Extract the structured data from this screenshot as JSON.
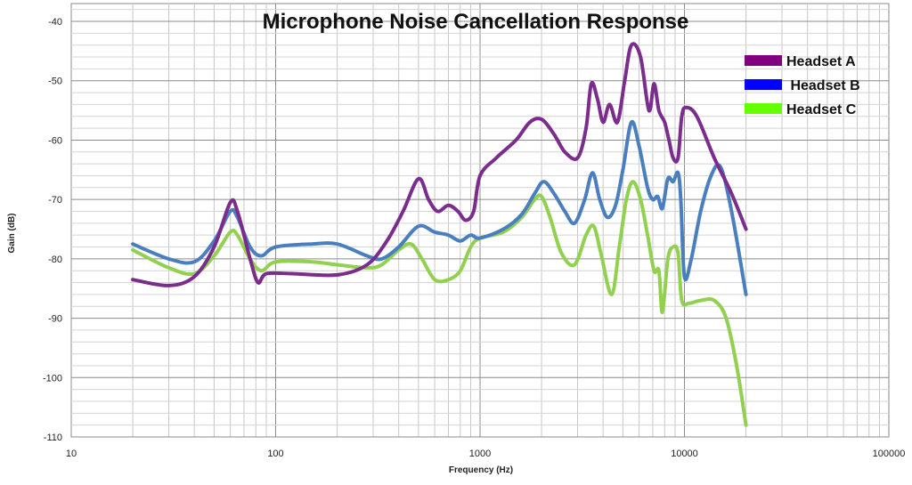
{
  "chart_data": {
    "type": "line",
    "title": "Microphone Noise Cancellation  Response",
    "xlabel": "Frequency (Hz)",
    "ylabel": "Gain (dB)",
    "x_scale": "log",
    "xlim": [
      10,
      100000
    ],
    "ylim": [
      -110,
      -37
    ],
    "x_ticks": [
      10,
      100,
      1000,
      10000,
      100000
    ],
    "x_tick_labels": [
      "10",
      "100",
      "1000",
      "10000",
      "100000"
    ],
    "y_ticks": [
      -110,
      -100,
      -90,
      -80,
      -70,
      -60,
      -50,
      -40
    ],
    "y_tick_labels": [
      "-110",
      "-100",
      "-90",
      "-80",
      "-70",
      "-60",
      "-50",
      "-40"
    ],
    "grid": true,
    "legend_position": "top-right",
    "series": [
      {
        "name": "Headset A",
        "legend_label": "Headset A",
        "color": "#7B2D8E",
        "swatch_color": "#800080",
        "points": [
          [
            20,
            -83.5
          ],
          [
            30,
            -84.5
          ],
          [
            40,
            -83
          ],
          [
            50,
            -78
          ],
          [
            60,
            -70.5
          ],
          [
            65,
            -72
          ],
          [
            75,
            -80
          ],
          [
            82,
            -84
          ],
          [
            90,
            -82.5
          ],
          [
            120,
            -82.5
          ],
          [
            200,
            -82.7
          ],
          [
            280,
            -81
          ],
          [
            350,
            -77
          ],
          [
            420,
            -72
          ],
          [
            500,
            -66.5
          ],
          [
            560,
            -70
          ],
          [
            620,
            -72
          ],
          [
            700,
            -71
          ],
          [
            780,
            -72
          ],
          [
            850,
            -73.5
          ],
          [
            930,
            -72
          ],
          [
            1000,
            -66
          ],
          [
            1200,
            -63
          ],
          [
            1500,
            -60
          ],
          [
            1750,
            -57
          ],
          [
            2000,
            -56.5
          ],
          [
            2300,
            -59
          ],
          [
            2600,
            -62
          ],
          [
            3000,
            -63
          ],
          [
            3300,
            -58
          ],
          [
            3500,
            -50.5
          ],
          [
            3750,
            -53
          ],
          [
            4000,
            -57
          ],
          [
            4300,
            -54
          ],
          [
            4700,
            -57
          ],
          [
            5100,
            -50
          ],
          [
            5500,
            -44
          ],
          [
            6100,
            -46
          ],
          [
            6700,
            -55
          ],
          [
            7100,
            -50.5
          ],
          [
            7500,
            -55
          ],
          [
            8000,
            -57
          ],
          [
            8400,
            -60
          ],
          [
            8800,
            -63
          ],
          [
            9300,
            -63
          ],
          [
            9700,
            -56
          ],
          [
            10200,
            -54.5
          ],
          [
            11500,
            -56
          ],
          [
            14000,
            -63
          ],
          [
            17000,
            -69
          ],
          [
            20000,
            -75
          ]
        ]
      },
      {
        "name": "Headset B",
        "legend_label": " Headset B",
        "color": "#4A7FBF",
        "swatch_color": "#0000FF",
        "points": [
          [
            20,
            -77.5
          ],
          [
            30,
            -80
          ],
          [
            40,
            -80.5
          ],
          [
            50,
            -77
          ],
          [
            60,
            -72
          ],
          [
            65,
            -73
          ],
          [
            75,
            -78
          ],
          [
            85,
            -79.5
          ],
          [
            100,
            -78
          ],
          [
            150,
            -77.5
          ],
          [
            200,
            -77.5
          ],
          [
            280,
            -79.5
          ],
          [
            330,
            -80
          ],
          [
            400,
            -78
          ],
          [
            500,
            -74.5
          ],
          [
            600,
            -75.5
          ],
          [
            700,
            -76
          ],
          [
            800,
            -77
          ],
          [
            900,
            -76
          ],
          [
            1000,
            -76.5
          ],
          [
            1300,
            -75
          ],
          [
            1600,
            -72.5
          ],
          [
            1850,
            -69
          ],
          [
            2050,
            -67
          ],
          [
            2300,
            -69
          ],
          [
            2600,
            -72
          ],
          [
            2900,
            -74
          ],
          [
            3250,
            -70
          ],
          [
            3550,
            -65.5
          ],
          [
            3850,
            -70
          ],
          [
            4200,
            -73
          ],
          [
            4600,
            -71
          ],
          [
            5000,
            -65
          ],
          [
            5500,
            -57
          ],
          [
            6000,
            -61
          ],
          [
            6600,
            -68
          ],
          [
            7000,
            -70
          ],
          [
            7400,
            -69.5
          ],
          [
            7800,
            -71.5
          ],
          [
            8300,
            -66.5
          ],
          [
            8800,
            -67
          ],
          [
            9300,
            -65.5
          ],
          [
            9600,
            -70
          ],
          [
            10000,
            -83
          ],
          [
            10800,
            -80
          ],
          [
            12000,
            -72
          ],
          [
            13500,
            -66
          ],
          [
            15000,
            -64.5
          ],
          [
            17000,
            -72
          ],
          [
            20000,
            -86
          ]
        ]
      },
      {
        "name": "Headset C",
        "legend_label": "Headset C",
        "color": "#92D050",
        "swatch_color": "#66FF00",
        "points": [
          [
            20,
            -78.5
          ],
          [
            30,
            -81.5
          ],
          [
            40,
            -82.5
          ],
          [
            50,
            -79.5
          ],
          [
            60,
            -75.5
          ],
          [
            65,
            -76
          ],
          [
            75,
            -80
          ],
          [
            85,
            -82
          ],
          [
            100,
            -80.5
          ],
          [
            150,
            -80.5
          ],
          [
            200,
            -81
          ],
          [
            280,
            -81.5
          ],
          [
            330,
            -81
          ],
          [
            400,
            -78.5
          ],
          [
            460,
            -77.5
          ],
          [
            520,
            -80
          ],
          [
            600,
            -83.5
          ],
          [
            700,
            -83.5
          ],
          [
            800,
            -82
          ],
          [
            900,
            -78
          ],
          [
            1000,
            -76.5
          ],
          [
            1300,
            -75.5
          ],
          [
            1600,
            -73
          ],
          [
            1850,
            -70
          ],
          [
            2000,
            -69.5
          ],
          [
            2200,
            -73
          ],
          [
            2500,
            -79
          ],
          [
            2900,
            -81
          ],
          [
            3300,
            -76
          ],
          [
            3600,
            -74.5
          ],
          [
            3900,
            -79
          ],
          [
            4400,
            -86
          ],
          [
            4800,
            -78
          ],
          [
            5200,
            -70
          ],
          [
            5600,
            -67
          ],
          [
            6100,
            -70
          ],
          [
            6600,
            -76
          ],
          [
            7100,
            -82
          ],
          [
            7500,
            -82
          ],
          [
            7800,
            -89
          ],
          [
            8300,
            -80
          ],
          [
            8800,
            -78
          ],
          [
            9300,
            -79
          ],
          [
            9700,
            -87
          ],
          [
            10500,
            -87.5
          ],
          [
            12000,
            -87
          ],
          [
            14000,
            -87
          ],
          [
            16000,
            -90
          ],
          [
            18000,
            -98
          ],
          [
            20000,
            -108
          ]
        ]
      }
    ]
  }
}
